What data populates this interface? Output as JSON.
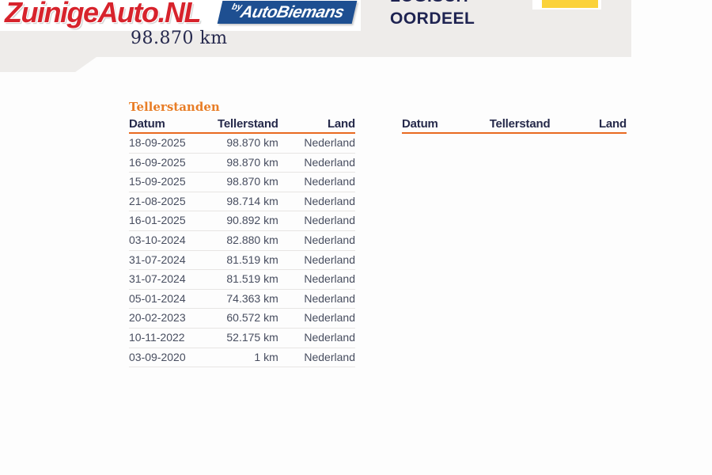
{
  "header": {
    "logo_text": "ZuinigeAuto.NL",
    "badge": {
      "by": "by",
      "name": "AutoBiemans"
    },
    "verdict_line1": "LOGISCH",
    "verdict_line2": "OORDEEL",
    "odometer_headline": "98.870 km",
    "colors": {
      "logo_red": "#d7232c",
      "badge_blue": "#1e4f91",
      "navy": "#1e2351",
      "band_gray": "#eeecea",
      "nap_yellow": "#fbd23a",
      "accent_orange": "#e87d26"
    }
  },
  "section": {
    "title": "Tellerstanden"
  },
  "tables": {
    "left": {
      "columns": [
        "Datum",
        "Tellerstand",
        "Land"
      ],
      "rows": [
        {
          "date": "18-09-2025",
          "km": "98.870 km",
          "country": "Nederland"
        },
        {
          "date": "16-09-2025",
          "km": "98.870 km",
          "country": "Nederland"
        },
        {
          "date": "15-09-2025",
          "km": "98.870 km",
          "country": "Nederland"
        },
        {
          "date": "21-08-2025",
          "km": "98.714 km",
          "country": "Nederland"
        },
        {
          "date": "16-01-2025",
          "km": "90.892 km",
          "country": "Nederland"
        },
        {
          "date": "03-10-2024",
          "km": "82.880 km",
          "country": "Nederland"
        },
        {
          "date": "31-07-2024",
          "km": "81.519 km",
          "country": "Nederland"
        },
        {
          "date": "31-07-2024",
          "km": "81.519 km",
          "country": "Nederland"
        },
        {
          "date": "05-01-2024",
          "km": "74.363 km",
          "country": "Nederland"
        },
        {
          "date": "20-02-2023",
          "km": "60.572 km",
          "country": "Nederland"
        },
        {
          "date": "10-11-2022",
          "km": "52.175 km",
          "country": "Nederland"
        },
        {
          "date": "03-09-2020",
          "km": "1 km",
          "country": "Nederland"
        }
      ]
    },
    "right": {
      "columns": [
        "Datum",
        "Tellerstand",
        "Land"
      ],
      "rows": []
    }
  }
}
